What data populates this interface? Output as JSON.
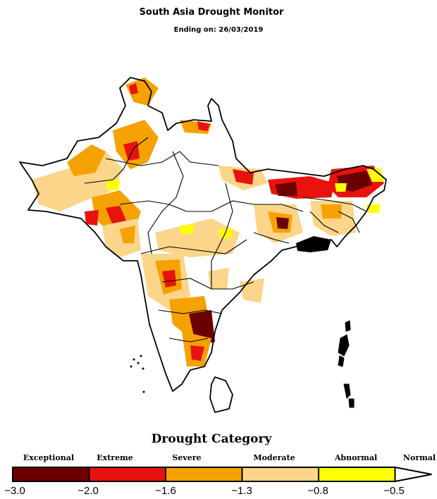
{
  "header": {
    "title": "South Asia Drought Monitor",
    "subtitle": "Ending on: 26/03/2019"
  },
  "legend": {
    "title": "Drought Category",
    "categories": [
      {
        "label": "Exceptional",
        "color": "#6b0000",
        "from": -3.0,
        "to": -2.0
      },
      {
        "label": "Extreme",
        "color": "#e8130e",
        "from": -2.0,
        "to": -1.6
      },
      {
        "label": "Severe",
        "color": "#f5a200",
        "from": -1.6,
        "to": -1.3
      },
      {
        "label": "Moderate",
        "color": "#fbd58a",
        "from": -1.3,
        "to": -0.8
      },
      {
        "label": "Abnormal",
        "color": "#ffff00",
        "from": -0.8,
        "to": -0.5
      },
      {
        "label": "Normal",
        "color": "#ffffff",
        "from": -0.5,
        "to": null
      }
    ],
    "ticks": [
      "−3.0",
      "−2.0",
      "−1.6",
      "−1.3",
      "−0.8",
      "−0.5"
    ]
  },
  "map": {
    "region": "South Asia",
    "outline_color": "#000000",
    "background": "#ffffff"
  }
}
